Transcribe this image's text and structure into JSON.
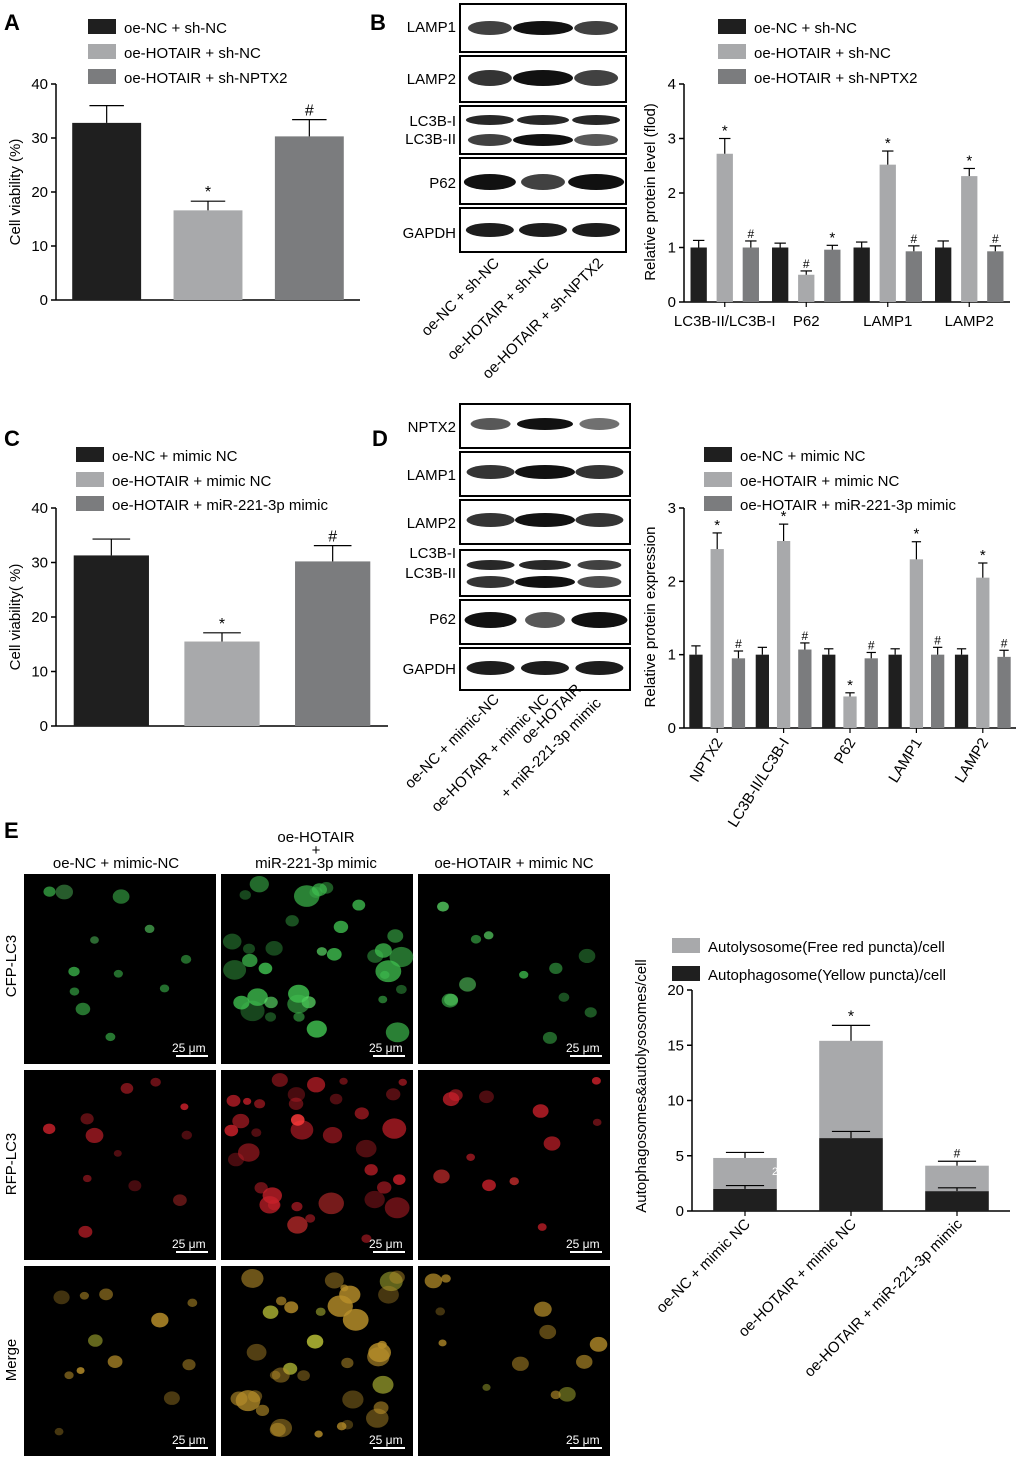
{
  "colors": {
    "black": "#1f1f1f",
    "light": "#a8a9ab",
    "dark": "#7b7c7e"
  },
  "panels": {
    "A": {
      "letter": "A",
      "legend": [
        "oe-NC + sh-NC",
        "oe-HOTAIR + sh-NC",
        "oe-HOTAIR + sh-NPTX2"
      ],
      "ylabel": "Cell viability (%)",
      "yticks": [
        "0",
        "10",
        "20",
        "30",
        "40"
      ]
    },
    "B": {
      "letter": "B",
      "blot_labels": [
        "LAMP1",
        "LAMP2",
        "LC3B-I",
        "LC3B-II",
        "P62",
        "GAPDH"
      ],
      "lanes": [
        "oe-NC + sh-NC",
        "oe-HOTAIR + sh-NC",
        "oe-HOTAIR + sh-NPTX2"
      ],
      "legend": [
        "oe-NC + sh-NC",
        "oe-HOTAIR + sh-NC",
        "oe-HOTAIR + sh-NPTX2"
      ],
      "ylabel": "Relative protein level (flod)",
      "yticks": [
        "0",
        "1",
        "2",
        "3",
        "4"
      ],
      "xticks": [
        "LC3B-II/LC3B-I",
        "P62",
        "LAMP1",
        "LAMP2"
      ]
    },
    "C": {
      "letter": "C",
      "legend": [
        "oe-NC + mimic NC",
        "oe-HOTAIR + mimic NC",
        "oe-HOTAIR + miR-221-3p mimic"
      ],
      "ylabel": "Cell viability( %)",
      "yticks": [
        "0",
        "10",
        "20",
        "30",
        "40"
      ]
    },
    "D": {
      "letter": "D",
      "blot_labels": [
        "NPTX2",
        "LAMP1",
        "LAMP2",
        "LC3B-I",
        "LC3B-II",
        "P62",
        "GAPDH"
      ],
      "lanes": [
        "oe-NC + mimic-NC",
        "oe-HOTAIR + mimic NC",
        "oe-HOTAIR",
        "+ miR-221-3p mimic"
      ],
      "legend": [
        "oe-NC + mimic NC",
        "oe-HOTAIR + mimic NC",
        "oe-HOTAIR + miR-221-3p mimic"
      ],
      "ylabel": "Relative protein expression",
      "yticks": [
        "0",
        "1",
        "2",
        "3"
      ],
      "xticks": [
        "NPTX2",
        "LC3B-II/LC3B-I",
        "P62",
        "LAMP1",
        "LAMP2"
      ]
    },
    "E": {
      "letter": "E",
      "col_headers": [
        "oe-NC + mimic-NC",
        "oe-HOTAIR",
        "+",
        "miR-221-3p mimic",
        "oe-HOTAIR + mimic NC"
      ],
      "row_labels": [
        "CFP-LC3",
        "RFP-LC3",
        "Merge"
      ],
      "scale_label": "25 μm",
      "legend": [
        "Autolysosome(Free red puncta)/cell",
        "Autophagosome(Yellow puncta)/cell"
      ],
      "ylabel": "Autophagosomes&autolysosomes/cell",
      "yticks": [
        "0",
        "5",
        "10",
        "15",
        "20"
      ],
      "xticks": [
        "oe-NC + mimic NC",
        "oe-HOTAIR + mimic NC",
        "oe-HOTAIR + miR-221-3p mimic"
      ],
      "inner_note": "25"
    }
  },
  "chart_data": [
    {
      "panel": "A",
      "type": "bar",
      "categories": [
        "oe-NC + sh-NC",
        "oe-HOTAIR + sh-NC",
        "oe-HOTAIR + sh-NPTX2"
      ],
      "values": [
        32.8,
        16.6,
        30.3
      ],
      "errors": [
        3.2,
        1.7,
        3.1
      ],
      "marks": [
        "",
        "*",
        "#"
      ],
      "ylim": [
        0,
        40
      ]
    },
    {
      "panel": "B",
      "type": "bar",
      "categories": [
        "LC3B-II/LC3B-I",
        "P62",
        "LAMP1",
        "LAMP2"
      ],
      "series": [
        {
          "name": "oe-NC + sh-NC",
          "values": [
            1.0,
            1.0,
            1.0,
            1.0
          ],
          "errors": [
            0.13,
            0.08,
            0.1,
            0.12
          ],
          "marks": [
            "",
            "",
            "",
            ""
          ]
        },
        {
          "name": "oe-HOTAIR + sh-NC",
          "values": [
            2.72,
            0.5,
            2.52,
            2.31
          ],
          "errors": [
            0.28,
            0.07,
            0.25,
            0.14
          ],
          "marks": [
            "*",
            "#",
            "*",
            "*"
          ]
        },
        {
          "name": "oe-HOTAIR + sh-NPTX2",
          "values": [
            1.0,
            0.96,
            0.93,
            0.93
          ],
          "errors": [
            0.12,
            0.08,
            0.1,
            0.1
          ],
          "marks": [
            "#",
            "*",
            "#",
            "#"
          ]
        }
      ],
      "ylim": [
        0,
        4
      ]
    },
    {
      "panel": "C",
      "type": "bar",
      "categories": [
        "oe-NC + mimic NC",
        "oe-HOTAIR + mimic NC",
        "oe-HOTAIR + miR-221-3p mimic"
      ],
      "values": [
        31.3,
        15.5,
        30.2
      ],
      "errors": [
        3.0,
        1.6,
        2.9
      ],
      "marks": [
        "",
        "*",
        "#"
      ],
      "ylim": [
        0,
        40
      ]
    },
    {
      "panel": "D",
      "type": "bar",
      "categories": [
        "NPTX2",
        "LC3B-II/LC3B-I",
        "P62",
        "LAMP1",
        "LAMP2"
      ],
      "series": [
        {
          "name": "oe-NC + mimic NC",
          "values": [
            1.0,
            1.0,
            1.0,
            1.0,
            1.0
          ],
          "errors": [
            0.12,
            0.1,
            0.08,
            0.08,
            0.08
          ],
          "marks": [
            "",
            "",
            "",
            "",
            ""
          ]
        },
        {
          "name": "oe-HOTAIR + mimic NC",
          "values": [
            2.44,
            2.55,
            0.43,
            2.3,
            2.05
          ],
          "errors": [
            0.22,
            0.23,
            0.05,
            0.24,
            0.2
          ],
          "marks": [
            "*",
            "*",
            "*",
            "*",
            "*"
          ]
        },
        {
          "name": "oe-HOTAIR + miR-221-3p mimic",
          "values": [
            0.95,
            1.07,
            0.95,
            1.0,
            0.97
          ],
          "errors": [
            0.1,
            0.09,
            0.08,
            0.1,
            0.09
          ],
          "marks": [
            "#",
            "#",
            "#",
            "#",
            "#"
          ]
        }
      ],
      "ylim": [
        0,
        3
      ]
    },
    {
      "panel": "E",
      "type": "bar",
      "stacked": true,
      "categories": [
        "oe-NC + mimic NC",
        "oe-HOTAIR + mimic NC",
        "oe-HOTAIR + miR-221-3p mimic"
      ],
      "series": [
        {
          "name": "Autophagosome(Yellow puncta)/cell",
          "values": [
            2.0,
            6.6,
            1.8
          ],
          "errors": [
            0.3,
            0.6,
            0.3
          ]
        },
        {
          "name": "Autolysosome(Free red puncta)/cell",
          "values": [
            2.8,
            8.8,
            2.3
          ],
          "errors": [
            0.5,
            1.4,
            0.4
          ]
        }
      ],
      "marks": [
        "",
        "*",
        "#"
      ],
      "ylim": [
        0,
        20
      ]
    }
  ]
}
